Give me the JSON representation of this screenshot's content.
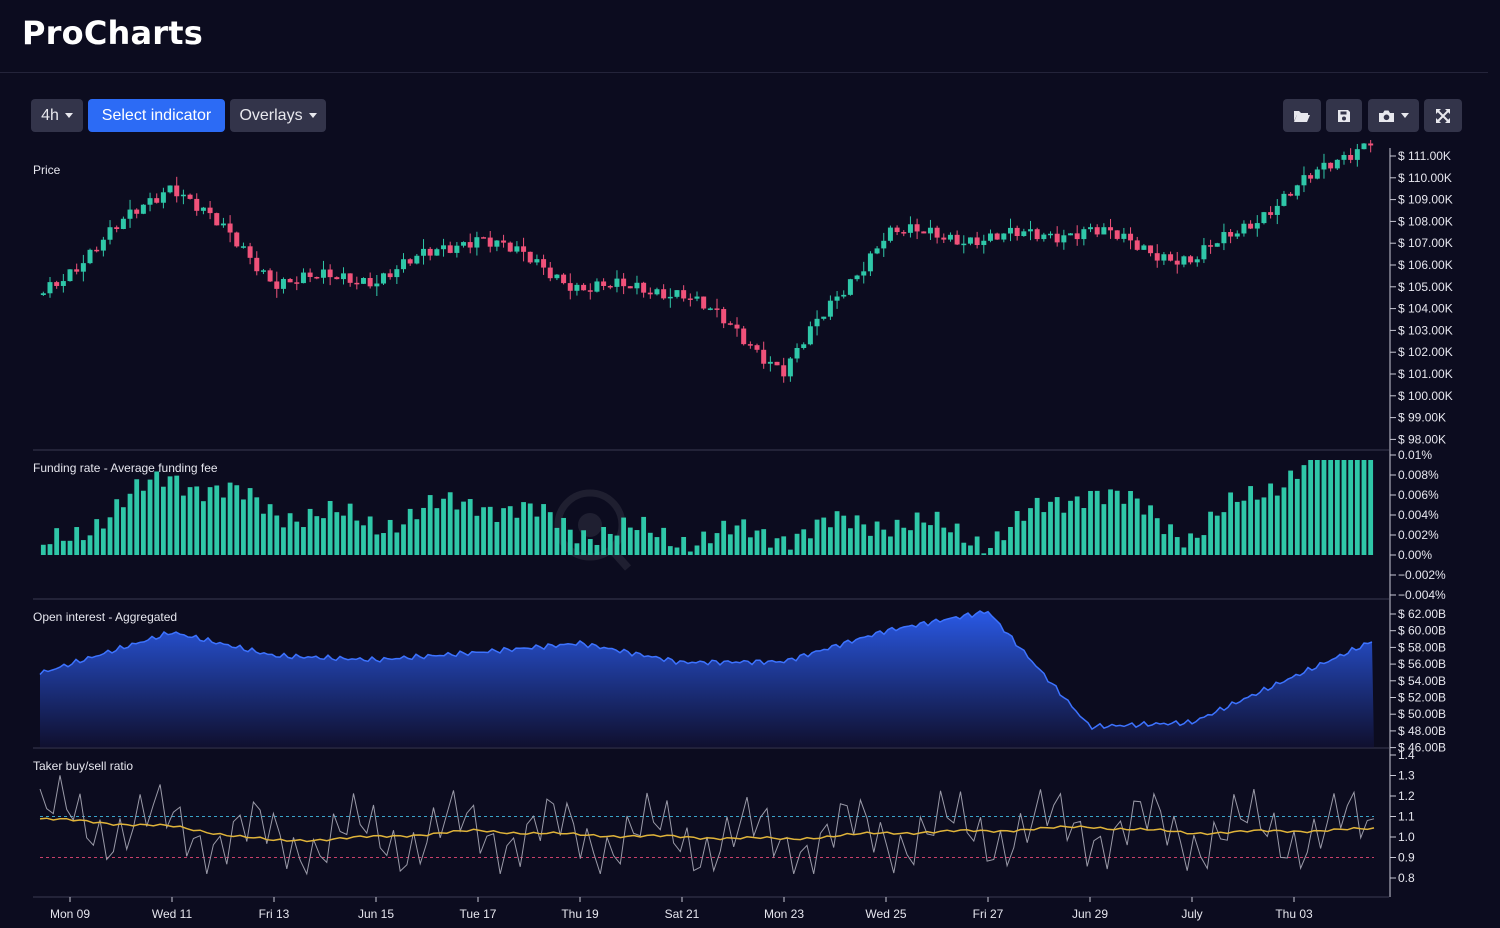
{
  "app": {
    "title": "ProCharts"
  },
  "toolbar": {
    "timeframe": "4h",
    "select_indicator": "Select indicator",
    "overlays": "Overlays",
    "icons": [
      "folder-open-icon",
      "save-icon",
      "camera-icon",
      "fullscreen-icon"
    ]
  },
  "colors": {
    "background": "#0c0c1f",
    "up": "#2fc7a8",
    "down": "#f0527a",
    "primary_button": "#2c6bf5",
    "oi_fill": "#2b5df0",
    "ratio_line": "#9a9aa8",
    "ratio_avg": "#e0b43a"
  },
  "panels": {
    "price": {
      "title": "Price",
      "ticks": [
        "$ 111.00K",
        "$ 110.00K",
        "$ 109.00K",
        "$ 108.00K",
        "$ 107.00K",
        "$ 106.00K",
        "$ 105.00K",
        "$ 104.00K",
        "$ 103.00K",
        "$ 102.00K",
        "$ 101.00K",
        "$ 100.00K",
        "$ 99.00K",
        "$ 98.00K"
      ]
    },
    "funding": {
      "title": "Funding rate - Average funding fee",
      "ticks": [
        "0.01%",
        "0.008%",
        "0.006%",
        "0.004%",
        "0.002%",
        "0.00%",
        "−0.002%",
        "−0.004%"
      ]
    },
    "oi": {
      "title": "Open interest - Aggregated",
      "ticks": [
        "$ 62.00B",
        "$ 60.00B",
        "$ 58.00B",
        "$ 56.00B",
        "$ 54.00B",
        "$ 52.00B",
        "$ 50.00B",
        "$ 48.00B",
        "$ 46.00B"
      ]
    },
    "ratio": {
      "title": "Taker buy/sell ratio",
      "ticks": [
        "1.4",
        "1.3",
        "1.2",
        "1.1",
        "1.0",
        "0.9",
        "0.8"
      ]
    }
  },
  "x_labels": [
    "Mon 09",
    "Wed 11",
    "Fri 13",
    "Jun 15",
    "Tue 17",
    "Thu 19",
    "Sat 21",
    "Mon 23",
    "Wed 25",
    "Fri 27",
    "Jun 29",
    "July",
    "Thu 03"
  ],
  "chart_data": [
    {
      "type": "line",
      "title": "Price",
      "x": [
        "Mon 09",
        "Wed 11",
        "Fri 13",
        "Jun 15",
        "Tue 17",
        "Thu 19",
        "Sat 21",
        "Mon 23",
        "Wed 25",
        "Fri 27",
        "Jun 29",
        "July",
        "Thu 03"
      ],
      "values": [
        105.8,
        109.8,
        105.3,
        105.4,
        107.4,
        105.0,
        104.8,
        101.2,
        107.5,
        107.2,
        107.6,
        106.1,
        109.4
      ],
      "ylim": [
        98,
        111
      ]
    },
    {
      "type": "bar",
      "title": "Funding rate - Average funding fee",
      "x": [
        "Mon 09",
        "Wed 11",
        "Fri 13",
        "Jun 15",
        "Tue 17",
        "Thu 19",
        "Sat 21",
        "Mon 23",
        "Wed 25",
        "Fri 27",
        "Jun 29",
        "July",
        "Thu 03"
      ],
      "values": [
        0.002,
        0.008,
        0.0045,
        0.0032,
        0.0055,
        0.0026,
        0.0018,
        0.0022,
        0.0035,
        0.0016,
        0.0068,
        0.002,
        0.0085
      ],
      "ylim": [
        -0.004,
        0.01
      ]
    },
    {
      "type": "area",
      "title": "Open interest - Aggregated",
      "x": [
        "Mon 09",
        "Wed 11",
        "Fri 13",
        "Jun 15",
        "Tue 17",
        "Thu 19",
        "Sat 21",
        "Mon 23",
        "Wed 25",
        "Fri 27",
        "Jun 29",
        "July",
        "Thu 03"
      ],
      "values": [
        56.0,
        59.8,
        57.0,
        56.5,
        57.4,
        58.5,
        56.2,
        56.3,
        60.0,
        62.3,
        48.5,
        49.0,
        54.5
      ],
      "ylim": [
        46,
        62
      ]
    },
    {
      "type": "line",
      "title": "Taker buy/sell ratio",
      "x": [
        "Mon 09",
        "Wed 11",
        "Fri 13",
        "Jun 15",
        "Tue 17",
        "Thu 19",
        "Sat 21",
        "Mon 23",
        "Wed 25",
        "Fri 27",
        "Jun 29",
        "July",
        "Thu 03"
      ],
      "values": [
        1.08,
        1.05,
        0.98,
        1.0,
        1.03,
        1.01,
        1.0,
        0.99,
        1.02,
        1.03,
        1.05,
        1.02,
        1.03
      ],
      "ylim": [
        0.75,
        1.4
      ]
    }
  ]
}
